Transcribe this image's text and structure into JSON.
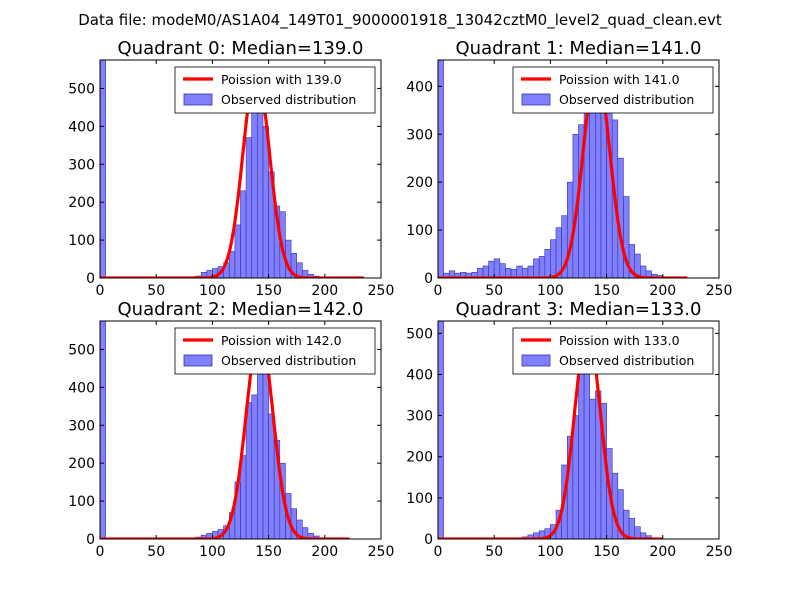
{
  "figure_title": "Data file: modeM0/AS1A04_149T01_9000001918_13042cztM0_level2_quad_clean.evt",
  "colors": {
    "bar_fill": "#8080ff",
    "bar_edge": "#3333aa",
    "poisson_line": "#ff0000"
  },
  "chart_data": [
    {
      "type": "bar",
      "title": "Quadrant 0: Median=139.0",
      "median": 139.0,
      "legend": [
        "Poission with 139.0",
        "Observed distribution"
      ],
      "legend_loc": "upper-right",
      "xlim": [
        0,
        250
      ],
      "ylim": [
        0,
        575
      ],
      "xticks": [
        0,
        50,
        100,
        150,
        200,
        250
      ],
      "yticks": [
        0,
        100,
        200,
        300,
        400,
        500
      ],
      "bin_width": 5,
      "bins": [
        [
          0,
          575
        ],
        [
          85,
          5
        ],
        [
          90,
          15
        ],
        [
          95,
          20
        ],
        [
          100,
          25
        ],
        [
          105,
          30
        ],
        [
          110,
          40
        ],
        [
          115,
          70
        ],
        [
          120,
          140
        ],
        [
          125,
          230
        ],
        [
          130,
          370
        ],
        [
          135,
          460
        ],
        [
          140,
          500
        ],
        [
          145,
          400
        ],
        [
          150,
          280
        ],
        [
          155,
          190
        ],
        [
          160,
          175
        ],
        [
          165,
          100
        ],
        [
          170,
          65
        ],
        [
          175,
          40
        ],
        [
          180,
          20
        ],
        [
          185,
          10
        ],
        [
          190,
          5
        ]
      ],
      "poisson_peak": 545,
      "poisson_xmax": 235
    },
    {
      "type": "bar",
      "title": "Quadrant 1: Median=141.0",
      "median": 141.0,
      "legend": [
        "Poission with 141.0",
        "Observed distribution"
      ],
      "legend_loc": "upper-right",
      "xlim": [
        0,
        250
      ],
      "ylim": [
        0,
        455
      ],
      "xticks": [
        0,
        50,
        100,
        150,
        200,
        250
      ],
      "yticks": [
        0,
        100,
        200,
        300,
        400
      ],
      "bin_width": 5,
      "bins": [
        [
          0,
          455
        ],
        [
          5,
          10
        ],
        [
          10,
          15
        ],
        [
          15,
          10
        ],
        [
          20,
          12
        ],
        [
          25,
          10
        ],
        [
          30,
          12
        ],
        [
          35,
          20
        ],
        [
          40,
          25
        ],
        [
          45,
          35
        ],
        [
          50,
          40
        ],
        [
          55,
          30
        ],
        [
          60,
          20
        ],
        [
          65,
          18
        ],
        [
          70,
          25
        ],
        [
          75,
          20
        ],
        [
          80,
          25
        ],
        [
          85,
          40
        ],
        [
          90,
          45
        ],
        [
          95,
          60
        ],
        [
          100,
          80
        ],
        [
          105,
          105
        ],
        [
          110,
          130
        ],
        [
          115,
          200
        ],
        [
          120,
          300
        ],
        [
          125,
          320
        ],
        [
          130,
          360
        ],
        [
          135,
          420
        ],
        [
          140,
          400
        ],
        [
          145,
          350
        ],
        [
          150,
          420
        ],
        [
          155,
          330
        ],
        [
          160,
          250
        ],
        [
          165,
          170
        ],
        [
          170,
          70
        ],
        [
          175,
          50
        ],
        [
          180,
          25
        ],
        [
          185,
          15
        ],
        [
          190,
          8
        ],
        [
          195,
          5
        ]
      ],
      "poisson_peak": 435,
      "poisson_xmax": 222
    },
    {
      "type": "bar",
      "title": "Quadrant 2: Median=142.0",
      "median": 142.0,
      "legend": [
        "Poission with 142.0",
        "Observed distribution"
      ],
      "legend_loc": "upper-right",
      "xlim": [
        0,
        250
      ],
      "ylim": [
        0,
        575
      ],
      "xticks": [
        0,
        50,
        100,
        150,
        200,
        250
      ],
      "yticks": [
        0,
        100,
        200,
        300,
        400,
        500
      ],
      "bin_width": 5,
      "bins": [
        [
          0,
          575
        ],
        [
          85,
          5
        ],
        [
          90,
          10
        ],
        [
          95,
          15
        ],
        [
          100,
          20
        ],
        [
          105,
          25
        ],
        [
          110,
          35
        ],
        [
          115,
          70
        ],
        [
          120,
          150
        ],
        [
          125,
          220
        ],
        [
          130,
          360
        ],
        [
          135,
          380
        ],
        [
          140,
          510
        ],
        [
          145,
          460
        ],
        [
          150,
          330
        ],
        [
          155,
          260
        ],
        [
          160,
          200
        ],
        [
          165,
          120
        ],
        [
          170,
          80
        ],
        [
          175,
          50
        ],
        [
          180,
          30
        ],
        [
          185,
          15
        ],
        [
          190,
          8
        ]
      ],
      "poisson_peak": 545,
      "poisson_xmax": 222
    },
    {
      "type": "bar",
      "title": "Quadrant 3: Median=133.0",
      "median": 133.0,
      "legend": [
        "Poission with 133.0",
        "Observed distribution"
      ],
      "legend_loc": "upper-right",
      "xlim": [
        0,
        250
      ],
      "ylim": [
        0,
        530
      ],
      "xticks": [
        0,
        50,
        100,
        150,
        200,
        250
      ],
      "yticks": [
        0,
        100,
        200,
        300,
        400,
        500
      ],
      "bin_width": 5,
      "bins": [
        [
          0,
          530
        ],
        [
          75,
          5
        ],
        [
          80,
          10
        ],
        [
          85,
          15
        ],
        [
          90,
          20
        ],
        [
          95,
          25
        ],
        [
          100,
          35
        ],
        [
          105,
          70
        ],
        [
          110,
          180
        ],
        [
          115,
          250
        ],
        [
          120,
          300
        ],
        [
          125,
          410
        ],
        [
          130,
          460
        ],
        [
          135,
          340
        ],
        [
          140,
          360
        ],
        [
          145,
          330
        ],
        [
          150,
          220
        ],
        [
          155,
          160
        ],
        [
          160,
          120
        ],
        [
          165,
          70
        ],
        [
          170,
          50
        ],
        [
          175,
          30
        ],
        [
          180,
          15
        ],
        [
          185,
          8
        ]
      ],
      "poisson_peak": 505,
      "poisson_xmax": 200
    }
  ]
}
